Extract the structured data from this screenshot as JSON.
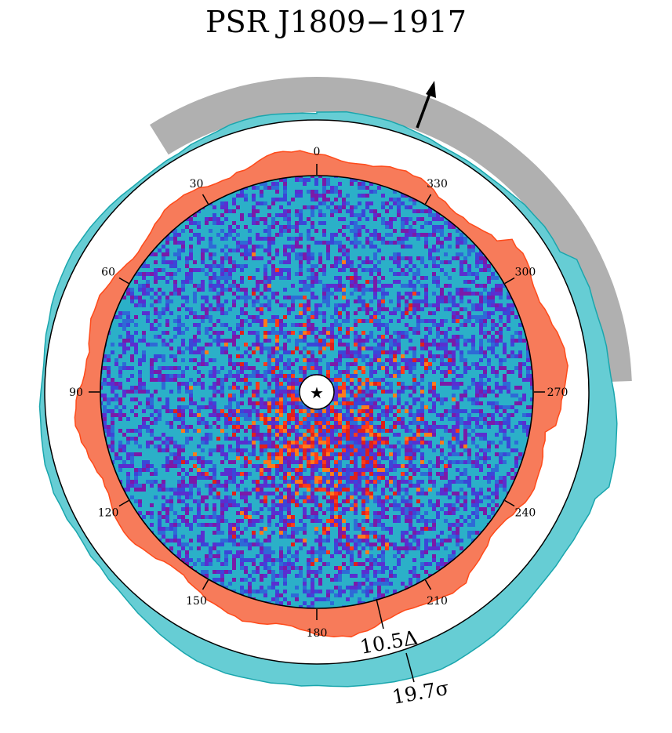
{
  "chart_data": {
    "type": "heatmap",
    "title": "PSR J1809−1917",
    "angle_ticks": [
      "0",
      "30",
      "60",
      "90",
      "120",
      "150",
      "180",
      "210",
      "240",
      "270",
      "300",
      "330"
    ],
    "angle_tick_values": [
      0,
      30,
      60,
      90,
      120,
      150,
      180,
      210,
      240,
      270,
      300,
      330
    ],
    "angle_direction": "counterclockwise",
    "center_marker": "star-icon",
    "annotations": [
      {
        "label": "10.5Δ",
        "ring": "excess-contour"
      },
      {
        "label": "19.7σ",
        "ring": "significance-band"
      }
    ],
    "colors": {
      "excess_contour": "#f77b5a",
      "significance_band": "#66cdd4",
      "position_angle_band": "#b0b0b0",
      "heatmap_low": "#2bb0c8",
      "heatmap_mid": "#5a2ed0",
      "heatmap_high": "#ff3a1a"
    }
  }
}
